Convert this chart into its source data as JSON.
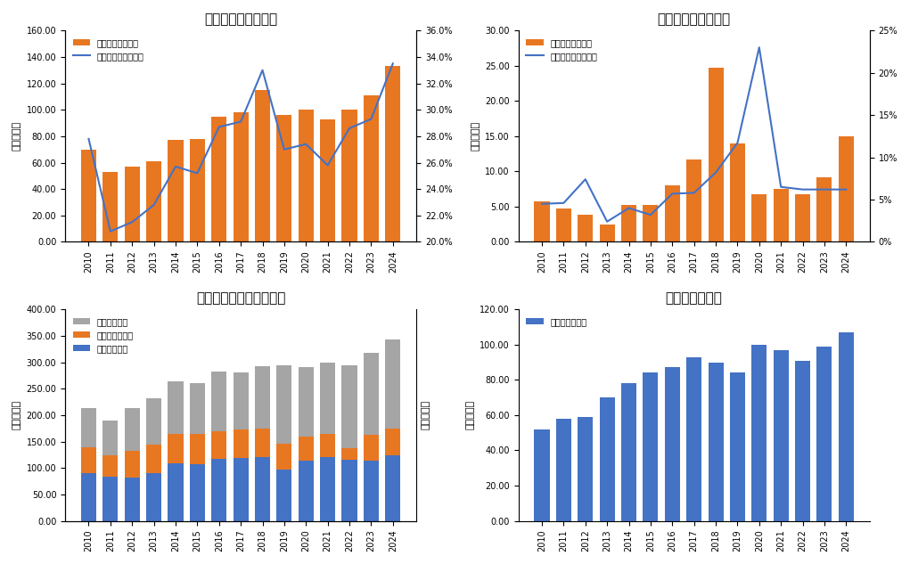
{
  "years": [
    2010,
    2011,
    2012,
    2013,
    2014,
    2015,
    2016,
    2017,
    2018,
    2019,
    2020,
    2021,
    2022,
    2023,
    2024
  ],
  "global_stock": [
    70,
    53,
    57,
    61,
    77,
    78,
    95,
    98,
    115,
    96,
    100,
    93,
    100,
    111,
    133
  ],
  "global_ratio": [
    0.278,
    0.208,
    0.215,
    0.228,
    0.257,
    0.252,
    0.287,
    0.291,
    0.33,
    0.27,
    0.274,
    0.258,
    0.286,
    0.293,
    0.335
  ],
  "us_stock": [
    5.7,
    4.8,
    3.9,
    2.5,
    5.3,
    5.2,
    8.0,
    11.7,
    24.7,
    14.0,
    6.8,
    7.5,
    6.8,
    9.2,
    15.0
  ],
  "us_ratio": [
    0.045,
    0.046,
    0.074,
    0.024,
    0.04,
    0.032,
    0.057,
    0.058,
    0.082,
    0.117,
    0.23,
    0.065,
    0.062,
    0.062,
    0.062
  ],
  "us_prod": [
    90,
    84,
    82,
    91,
    108,
    107,
    117,
    119,
    120,
    97,
    114,
    120,
    116,
    113,
    124
  ],
  "arg_prod": [
    49,
    40,
    50,
    54,
    56,
    57,
    52,
    54,
    54,
    49,
    46,
    45,
    22,
    50,
    50
  ],
  "bra_prod": [
    75,
    66,
    82,
    87,
    100,
    97,
    113,
    107,
    118,
    148,
    131,
    134,
    156,
    154,
    169
  ],
  "china_import": [
    52,
    58,
    59,
    70,
    78,
    84,
    87,
    93,
    90,
    84,
    100,
    97,
    91,
    99,
    107
  ],
  "bar_color_orange": "#E87722",
  "bar_color_blue": "#4472C4",
  "bar_color_gray": "#A5A5A5",
  "line_color_blue": "#4472C4",
  "title1": "全球大豆库存消费比",
  "title2": "美国大豆库存消费比",
  "title3": "美国巴西阿根廷大豆产量",
  "title4": "中国大豆进口量",
  "ylabel_left": "单位百万吨",
  "ylabel_right": "单位百万吨",
  "legend1_bar": "全球大豆期末库存",
  "legend1_line": "全球大豆库存消费比",
  "legend2_bar": "美国大豆期末库存",
  "legend2_line": "美国大豆库存消费比",
  "legend3_bra": "巴西大豆产量",
  "legend3_arg": "阿根廷大豆产量",
  "legend3_us": "美国大豆产量",
  "legend4": "中国大豆进口量"
}
